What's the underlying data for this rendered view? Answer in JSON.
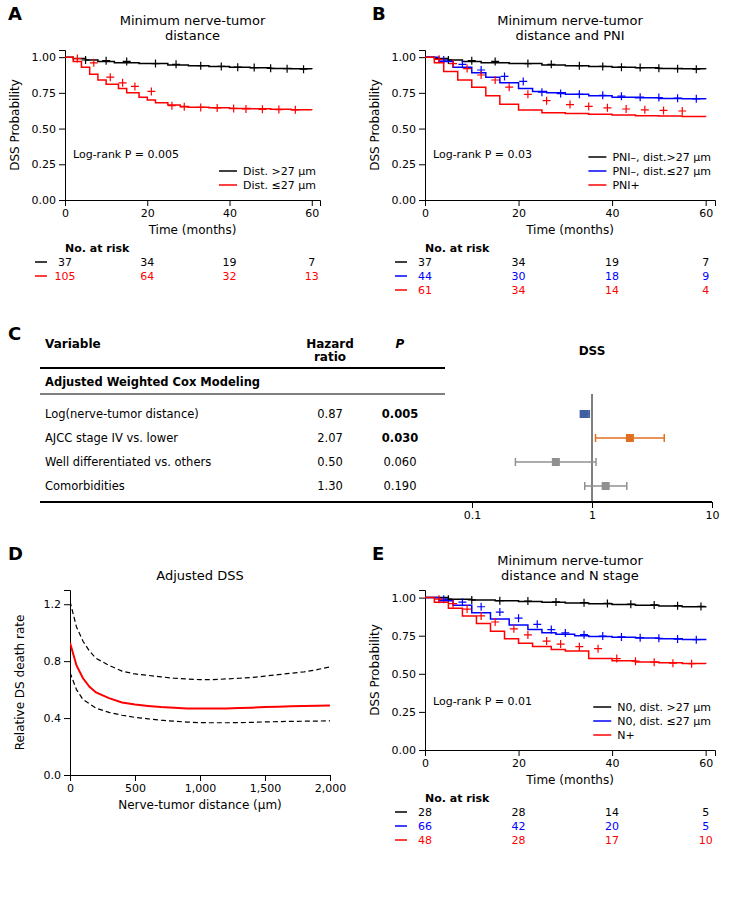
{
  "chart_data": [
    {
      "type": "survival",
      "panel_label": "A",
      "title": "Minimum nerve-tumor\ndistance",
      "xlabel": "Time (months)",
      "ylabel": "DSS Probability",
      "annotations": [
        "Log-rank P = 0.005"
      ],
      "legend": "lower right",
      "xlim": [
        0,
        62
      ],
      "xticks": [
        0,
        20,
        40,
        60
      ],
      "ylim": [
        0,
        1.05
      ],
      "yticks": [
        {
          "value": 0,
          "label": "0.00"
        },
        0.25,
        {
          "value": 0.5,
          "label": "0.50"
        },
        0.75,
        {
          "value": 1,
          "label": "1.00"
        }
      ],
      "series": [
        {
          "name": "Dist. >27 μm",
          "type": "step",
          "color": "black",
          "x": [
            0,
            2,
            5,
            8,
            12,
            18,
            25,
            30,
            35,
            40,
            45,
            50,
            55,
            60
          ],
          "values": [
            1.0,
            0.99,
            0.98,
            0.97,
            0.96,
            0.955,
            0.945,
            0.94,
            0.935,
            0.93,
            0.925,
            0.92,
            0.918,
            0.915
          ]
        },
        {
          "type": "scatter",
          "marker": "plus",
          "color": "black",
          "x": [
            5,
            10,
            15,
            22,
            27,
            33,
            38,
            42,
            46,
            50,
            54,
            58
          ],
          "values": [
            0.98,
            0.975,
            0.97,
            0.955,
            0.95,
            0.94,
            0.935,
            0.93,
            0.927,
            0.922,
            0.919,
            0.916
          ]
        },
        {
          "name": "Dist. ≤27 μm",
          "type": "step",
          "color": "red",
          "x": [
            0,
            2,
            4,
            6,
            8,
            10,
            13,
            15,
            18,
            20,
            22,
            25,
            28,
            30,
            35,
            40,
            45,
            50,
            55,
            60
          ],
          "values": [
            1.0,
            0.97,
            0.93,
            0.88,
            0.84,
            0.81,
            0.78,
            0.75,
            0.72,
            0.7,
            0.68,
            0.665,
            0.655,
            0.65,
            0.645,
            0.64,
            0.638,
            0.635,
            0.632,
            0.63
          ]
        },
        {
          "type": "scatter",
          "marker": "plus",
          "color": "red",
          "x": [
            3,
            7,
            11,
            14,
            17,
            21,
            26,
            29,
            33,
            37,
            41,
            44,
            48,
            52,
            56
          ],
          "values": [
            0.99,
            0.96,
            0.86,
            0.82,
            0.795,
            0.76,
            0.66,
            0.652,
            0.648,
            0.644,
            0.641,
            0.637,
            0.635,
            0.633,
            0.631
          ]
        }
      ],
      "at_risk": {
        "label": "No. at risk",
        "x": [
          0,
          20,
          40,
          60
        ],
        "rows": [
          {
            "color": "black",
            "values": [
              37,
              34,
              19,
              7
            ]
          },
          {
            "color": "red",
            "values": [
              105,
              64,
              32,
              13
            ]
          }
        ]
      }
    },
    {
      "type": "survival",
      "panel_label": "B",
      "title": "Minimum nerve-tumor\ndistance and PNI",
      "xlabel": "Time (months)",
      "ylabel": "DSS Probability",
      "annotations": [
        "Log-rank P = 0.03"
      ],
      "legend": "lower right",
      "xlim": [
        0,
        62
      ],
      "xticks": [
        0,
        20,
        40,
        60
      ],
      "ylim": [
        0,
        1.05
      ],
      "yticks": [
        {
          "value": 0,
          "label": "0.00"
        },
        0.25,
        {
          "value": 0.5,
          "label": "0.50"
        },
        0.75,
        {
          "value": 1,
          "label": "1.00"
        }
      ],
      "series": [
        {
          "name": "PNI–, dist.>27 μm",
          "type": "step",
          "color": "black",
          "x": [
            0,
            2,
            5,
            8,
            12,
            18,
            25,
            30,
            35,
            40,
            45,
            50,
            55,
            60
          ],
          "values": [
            1.0,
            0.99,
            0.98,
            0.97,
            0.96,
            0.955,
            0.945,
            0.94,
            0.935,
            0.93,
            0.925,
            0.92,
            0.918,
            0.915
          ]
        },
        {
          "type": "scatter",
          "marker": "plus",
          "color": "black",
          "x": [
            5,
            10,
            15,
            22,
            27,
            33,
            38,
            42,
            46,
            50,
            54,
            58
          ],
          "values": [
            0.98,
            0.975,
            0.97,
            0.955,
            0.95,
            0.94,
            0.935,
            0.93,
            0.927,
            0.922,
            0.919,
            0.916
          ]
        },
        {
          "name": "PNI–, dist.≤27 μm",
          "type": "step",
          "color": "blue",
          "x": [
            0,
            3,
            6,
            10,
            13,
            16,
            20,
            23,
            26,
            30,
            35,
            40,
            45,
            50,
            55,
            60
          ],
          "values": [
            1.0,
            0.97,
            0.93,
            0.89,
            0.86,
            0.82,
            0.78,
            0.76,
            0.75,
            0.74,
            0.73,
            0.72,
            0.715,
            0.71,
            0.708,
            0.705
          ]
        },
        {
          "type": "scatter",
          "marker": "plus",
          "color": "blue",
          "x": [
            4,
            8,
            12,
            17,
            21,
            25,
            29,
            33,
            38,
            42,
            46,
            50,
            54,
            58
          ],
          "values": [
            0.98,
            0.95,
            0.91,
            0.865,
            0.83,
            0.755,
            0.745,
            0.74,
            0.733,
            0.727,
            0.72,
            0.717,
            0.713,
            0.708
          ]
        },
        {
          "name": "PNI+",
          "type": "step",
          "color": "red",
          "x": [
            0,
            2,
            4,
            7,
            10,
            13,
            16,
            20,
            25,
            30,
            35,
            40,
            45,
            50,
            55,
            60
          ],
          "values": [
            1.0,
            0.96,
            0.9,
            0.84,
            0.79,
            0.73,
            0.67,
            0.63,
            0.61,
            0.605,
            0.6,
            0.595,
            0.59,
            0.588,
            0.585,
            0.582
          ]
        },
        {
          "type": "scatter",
          "marker": "plus",
          "color": "red",
          "x": [
            3,
            6,
            9,
            12,
            15,
            18,
            22,
            26,
            31,
            35,
            39,
            43,
            47,
            51,
            55
          ],
          "values": [
            0.985,
            0.955,
            0.92,
            0.875,
            0.84,
            0.79,
            0.74,
            0.695,
            0.668,
            0.655,
            0.645,
            0.637,
            0.631,
            0.627,
            0.623
          ]
        }
      ],
      "at_risk": {
        "label": "No. at risk",
        "x": [
          0,
          20,
          40,
          60
        ],
        "rows": [
          {
            "color": "black",
            "values": [
              37,
              34,
              19,
              7
            ]
          },
          {
            "color": "blue",
            "values": [
              44,
              30,
              18,
              9
            ]
          },
          {
            "color": "red",
            "values": [
              61,
              34,
              14,
              4
            ]
          }
        ]
      }
    },
    {
      "type": "forest",
      "panel_label": "C",
      "title": "DSS",
      "headers": [
        "Variable",
        "Hazard\nratio",
        "P"
      ],
      "section_header": "Adjusted Weighted Cox Modeling",
      "categories": [
        "Log(nerve-tumor distance)",
        "AJCC stage IV vs. lower",
        "Well differentiated vs. others",
        "Comorbidities"
      ],
      "values": [
        0.87,
        2.07,
        0.5,
        1.3
      ],
      "value_labels": [
        "0.87",
        "2.07",
        "0.50",
        "1.30"
      ],
      "ci_low": [
        0.8,
        1.07,
        0.23,
        0.87
      ],
      "ci_high": [
        0.95,
        4.0,
        1.08,
        1.95
      ],
      "p_values": [
        "0.005",
        "0.030",
        "0.060",
        "0.190"
      ],
      "p_bold": [
        true,
        true,
        false,
        false
      ],
      "colors": [
        "#3F5FA0",
        "#E07020",
        "#909090",
        "#909090"
      ],
      "reference_line": 1,
      "log": "x",
      "xlim": [
        0.1,
        10
      ],
      "xticks": [
        0.1,
        1,
        10
      ]
    },
    {
      "type": "line",
      "panel_label": "D",
      "title": "Adjusted DSS",
      "xlabel": "Nerve-tumor distance (μm)",
      "ylabel": "Relative DS death rate",
      "x": [
        0,
        50,
        100,
        150,
        200,
        300,
        400,
        500,
        600,
        700,
        800,
        900,
        1000,
        1100,
        1200,
        1300,
        1400,
        1500,
        1600,
        1700,
        1800,
        1900,
        2000
      ],
      "series": [
        {
          "type": "line",
          "color": "red",
          "values": [
            0.93,
            0.77,
            0.68,
            0.62,
            0.58,
            0.54,
            0.51,
            0.495,
            0.485,
            0.477,
            0.472,
            0.468,
            0.467,
            0.467,
            0.468,
            0.47,
            0.473,
            0.477,
            0.48,
            0.483,
            0.485,
            0.487,
            0.489
          ]
        },
        {
          "type": "line",
          "color": "black",
          "line_style": "dashed",
          "values": [
            1.22,
            1.04,
            0.94,
            0.87,
            0.82,
            0.77,
            0.73,
            0.71,
            0.7,
            0.69,
            0.68,
            0.675,
            0.67,
            0.67,
            0.675,
            0.68,
            0.685,
            0.695,
            0.705,
            0.715,
            0.725,
            0.74,
            0.76
          ]
        },
        {
          "type": "line",
          "color": "black",
          "line_style": "dashed",
          "values": [
            0.72,
            0.6,
            0.53,
            0.5,
            0.47,
            0.44,
            0.42,
            0.405,
            0.395,
            0.385,
            0.378,
            0.372,
            0.368,
            0.367,
            0.367,
            0.368,
            0.37,
            0.373,
            0.375,
            0.377,
            0.378,
            0.379,
            0.38
          ]
        }
      ],
      "xlim": [
        0,
        2000
      ],
      "xticks": [
        0,
        500,
        {
          "value": 1000,
          "label": "1,000"
        },
        {
          "value": 1500,
          "label": "1,500"
        },
        {
          "value": 2000,
          "label": "2,000"
        }
      ],
      "ylim": [
        0,
        1.3
      ],
      "yticks": [
        {
          "value": 0,
          "label": "0.0"
        },
        0.4,
        0.8,
        1.2
      ]
    },
    {
      "type": "survival",
      "panel_label": "E",
      "title": "Minimum nerve-tumor\ndistance and N stage",
      "xlabel": "Time (months)",
      "ylabel": "DSS Probability",
      "annotations": [
        "Log-rank P = 0.01"
      ],
      "legend": "lower right",
      "xlim": [
        0,
        62
      ],
      "xticks": [
        0,
        20,
        40,
        60
      ],
      "ylim": [
        0,
        1.05
      ],
      "yticks": [
        {
          "value": 0,
          "label": "0.00"
        },
        0.25,
        {
          "value": 0.5,
          "label": "0.50"
        },
        0.75,
        {
          "value": 1,
          "label": "1.00"
        }
      ],
      "series": [
        {
          "name": "N0, dist. >27 μm",
          "type": "step",
          "color": "black",
          "x": [
            0,
            5,
            10,
            15,
            20,
            25,
            30,
            35,
            40,
            45,
            50,
            55,
            60
          ],
          "values": [
            1.0,
            0.99,
            0.985,
            0.98,
            0.975,
            0.97,
            0.965,
            0.96,
            0.955,
            0.95,
            0.945,
            0.94,
            0.935
          ]
        },
        {
          "type": "scatter",
          "marker": "plus",
          "color": "black",
          "x": [
            5,
            10,
            16,
            22,
            28,
            34,
            39,
            44,
            49,
            54,
            59
          ],
          "values": [
            0.99,
            0.985,
            0.98,
            0.977,
            0.972,
            0.967,
            0.962,
            0.957,
            0.952,
            0.947,
            0.942
          ]
        },
        {
          "name": "N0, dist. ≤27 μm",
          "type": "step",
          "color": "blue",
          "x": [
            0,
            3,
            6,
            10,
            14,
            18,
            22,
            25,
            28,
            32,
            35,
            40,
            45,
            50,
            55,
            60
          ],
          "values": [
            1.0,
            0.98,
            0.95,
            0.9,
            0.86,
            0.82,
            0.79,
            0.77,
            0.76,
            0.75,
            0.745,
            0.74,
            0.735,
            0.73,
            0.725,
            0.72
          ]
        },
        {
          "type": "scatter",
          "marker": "plus",
          "color": "blue",
          "x": [
            4,
            8,
            12,
            16,
            20,
            24,
            27,
            30,
            34,
            38,
            42,
            46,
            50,
            54,
            58
          ],
          "values": [
            0.99,
            0.97,
            0.94,
            0.905,
            0.865,
            0.825,
            0.79,
            0.768,
            0.757,
            0.748,
            0.742,
            0.737,
            0.733,
            0.728,
            0.724
          ]
        },
        {
          "name": "N+",
          "type": "step",
          "color": "red",
          "x": [
            0,
            2,
            5,
            8,
            11,
            14,
            17,
            20,
            23,
            27,
            30,
            35,
            40,
            45,
            50,
            55,
            60
          ],
          "values": [
            1.0,
            0.97,
            0.93,
            0.88,
            0.83,
            0.78,
            0.73,
            0.7,
            0.68,
            0.66,
            0.65,
            0.6,
            0.585,
            0.578,
            0.572,
            0.568,
            0.565
          ]
        },
        {
          "type": "scatter",
          "marker": "plus",
          "color": "red",
          "x": [
            3,
            6,
            9,
            12,
            15,
            19,
            22,
            26,
            29,
            33,
            37,
            41,
            45,
            49,
            53,
            57
          ],
          "values": [
            0.99,
            0.96,
            0.925,
            0.88,
            0.84,
            0.795,
            0.755,
            0.715,
            0.695,
            0.678,
            0.665,
            0.6,
            0.583,
            0.576,
            0.57,
            0.566
          ]
        }
      ],
      "at_risk": {
        "label": "No. at risk",
        "x": [
          0,
          20,
          40,
          60
        ],
        "rows": [
          {
            "color": "black",
            "values": [
              28,
              28,
              14,
              5
            ]
          },
          {
            "color": "blue",
            "values": [
              66,
              42,
              20,
              5
            ]
          },
          {
            "color": "red",
            "values": [
              48,
              28,
              17,
              10
            ]
          }
        ]
      }
    }
  ]
}
